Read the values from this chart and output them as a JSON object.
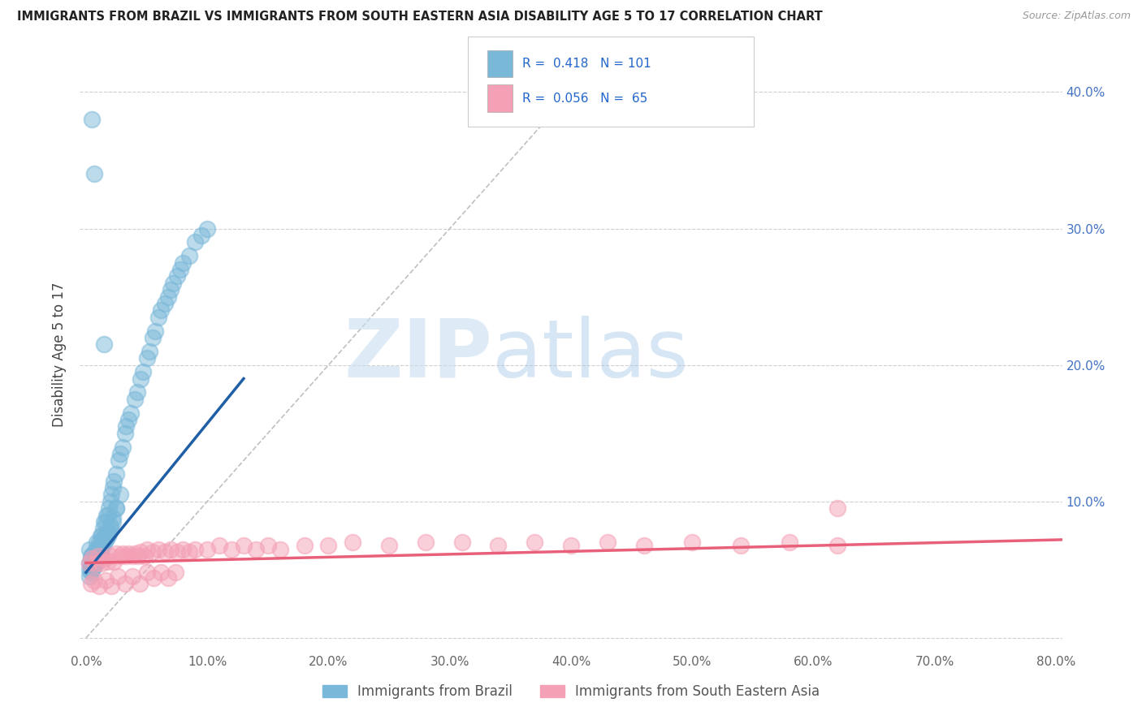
{
  "title": "IMMIGRANTS FROM BRAZIL VS IMMIGRANTS FROM SOUTH EASTERN ASIA DISABILITY AGE 5 TO 17 CORRELATION CHART",
  "source": "Source: ZipAtlas.com",
  "ylabel": "Disability Age 5 to 17",
  "legend_label_1": "Immigrants from Brazil",
  "legend_label_2": "Immigrants from South Eastern Asia",
  "R1": 0.418,
  "N1": 101,
  "R2": 0.056,
  "N2": 65,
  "xlim": [
    -0.005,
    0.805
  ],
  "ylim": [
    -0.01,
    0.425
  ],
  "xticks": [
    0.0,
    0.1,
    0.2,
    0.3,
    0.4,
    0.5,
    0.6,
    0.7,
    0.8
  ],
  "yticks": [
    0.0,
    0.1,
    0.2,
    0.3,
    0.4
  ],
  "xticklabels": [
    "0.0%",
    "10.0%",
    "20.0%",
    "30.0%",
    "40.0%",
    "50.0%",
    "60.0%",
    "70.0%",
    "80.0%"
  ],
  "yticklabels_right": [
    "",
    "10.0%",
    "20.0%",
    "30.0%",
    "40.0%"
  ],
  "color_brazil": "#7ab8d9",
  "color_sea": "#f4a0b5",
  "color_brazil_line": "#1f5fa6",
  "color_sea_line": "#e8607a",
  "background_color": "#ffffff",
  "watermark_zip": "ZIP",
  "watermark_atlas": "atlas",
  "brazil_points_x": [
    0.005,
    0.007,
    0.003,
    0.004,
    0.006,
    0.008,
    0.009,
    0.01,
    0.011,
    0.012,
    0.013,
    0.014,
    0.015,
    0.016,
    0.017,
    0.018,
    0.019,
    0.02,
    0.021,
    0.022,
    0.023,
    0.025,
    0.027,
    0.028,
    0.03,
    0.032,
    0.033,
    0.035,
    0.037,
    0.04,
    0.042,
    0.045,
    0.047,
    0.05,
    0.052,
    0.055,
    0.057,
    0.06,
    0.062,
    0.065,
    0.068,
    0.07,
    0.072,
    0.075,
    0.078,
    0.08,
    0.085,
    0.09,
    0.095,
    0.1,
    0.003,
    0.004,
    0.005,
    0.006,
    0.007,
    0.008,
    0.009,
    0.01,
    0.011,
    0.012,
    0.013,
    0.014,
    0.015,
    0.016,
    0.017,
    0.018,
    0.02,
    0.022,
    0.025,
    0.028,
    0.003,
    0.004,
    0.005,
    0.006,
    0.007,
    0.008,
    0.009,
    0.01,
    0.011,
    0.012,
    0.013,
    0.014,
    0.015,
    0.016,
    0.017,
    0.018,
    0.019,
    0.02,
    0.022,
    0.025,
    0.003,
    0.004,
    0.005,
    0.006,
    0.007,
    0.008,
    0.009,
    0.01,
    0.011,
    0.012,
    0.015
  ],
  "brazil_points_y": [
    0.38,
    0.34,
    0.065,
    0.06,
    0.06,
    0.065,
    0.07,
    0.065,
    0.07,
    0.075,
    0.075,
    0.08,
    0.085,
    0.085,
    0.09,
    0.09,
    0.095,
    0.1,
    0.105,
    0.11,
    0.115,
    0.12,
    0.13,
    0.135,
    0.14,
    0.15,
    0.155,
    0.16,
    0.165,
    0.175,
    0.18,
    0.19,
    0.195,
    0.205,
    0.21,
    0.22,
    0.225,
    0.235,
    0.24,
    0.245,
    0.25,
    0.255,
    0.26,
    0.265,
    0.27,
    0.275,
    0.28,
    0.29,
    0.295,
    0.3,
    0.055,
    0.058,
    0.06,
    0.062,
    0.062,
    0.063,
    0.064,
    0.065,
    0.066,
    0.068,
    0.07,
    0.072,
    0.074,
    0.075,
    0.077,
    0.078,
    0.082,
    0.088,
    0.095,
    0.105,
    0.05,
    0.052,
    0.055,
    0.055,
    0.057,
    0.058,
    0.06,
    0.062,
    0.063,
    0.065,
    0.067,
    0.068,
    0.07,
    0.072,
    0.073,
    0.075,
    0.077,
    0.08,
    0.085,
    0.095,
    0.045,
    0.048,
    0.05,
    0.052,
    0.053,
    0.055,
    0.057,
    0.058,
    0.06,
    0.062,
    0.215
  ],
  "sea_points_x": [
    0.003,
    0.005,
    0.008,
    0.01,
    0.013,
    0.015,
    0.018,
    0.02,
    0.023,
    0.025,
    0.028,
    0.03,
    0.033,
    0.035,
    0.038,
    0.04,
    0.043,
    0.045,
    0.048,
    0.05,
    0.055,
    0.06,
    0.065,
    0.07,
    0.075,
    0.08,
    0.085,
    0.09,
    0.1,
    0.11,
    0.12,
    0.13,
    0.14,
    0.15,
    0.16,
    0.18,
    0.2,
    0.22,
    0.25,
    0.28,
    0.31,
    0.34,
    0.37,
    0.4,
    0.43,
    0.46,
    0.5,
    0.54,
    0.58,
    0.62,
    0.004,
    0.007,
    0.011,
    0.016,
    0.021,
    0.026,
    0.032,
    0.038,
    0.044,
    0.05,
    0.056,
    0.062,
    0.068,
    0.074,
    0.62
  ],
  "sea_points_y": [
    0.055,
    0.058,
    0.055,
    0.06,
    0.055,
    0.058,
    0.056,
    0.06,
    0.056,
    0.062,
    0.06,
    0.062,
    0.06,
    0.062,
    0.06,
    0.062,
    0.06,
    0.063,
    0.06,
    0.065,
    0.063,
    0.065,
    0.063,
    0.065,
    0.063,
    0.065,
    0.063,
    0.065,
    0.065,
    0.068,
    0.065,
    0.068,
    0.065,
    0.068,
    0.065,
    0.068,
    0.068,
    0.07,
    0.068,
    0.07,
    0.07,
    0.068,
    0.07,
    0.068,
    0.07,
    0.068,
    0.07,
    0.068,
    0.07,
    0.068,
    0.04,
    0.042,
    0.038,
    0.042,
    0.038,
    0.045,
    0.04,
    0.045,
    0.04,
    0.048,
    0.044,
    0.048,
    0.044,
    0.048,
    0.095
  ],
  "brazil_trend_x": [
    0.0,
    0.13
  ],
  "brazil_trend_y": [
    0.048,
    0.19
  ],
  "sea_trend_x": [
    0.0,
    0.805
  ],
  "sea_trend_y": [
    0.055,
    0.072
  ],
  "diag_line_x": [
    0.0,
    0.42
  ],
  "diag_line_y": [
    0.0,
    0.42
  ]
}
